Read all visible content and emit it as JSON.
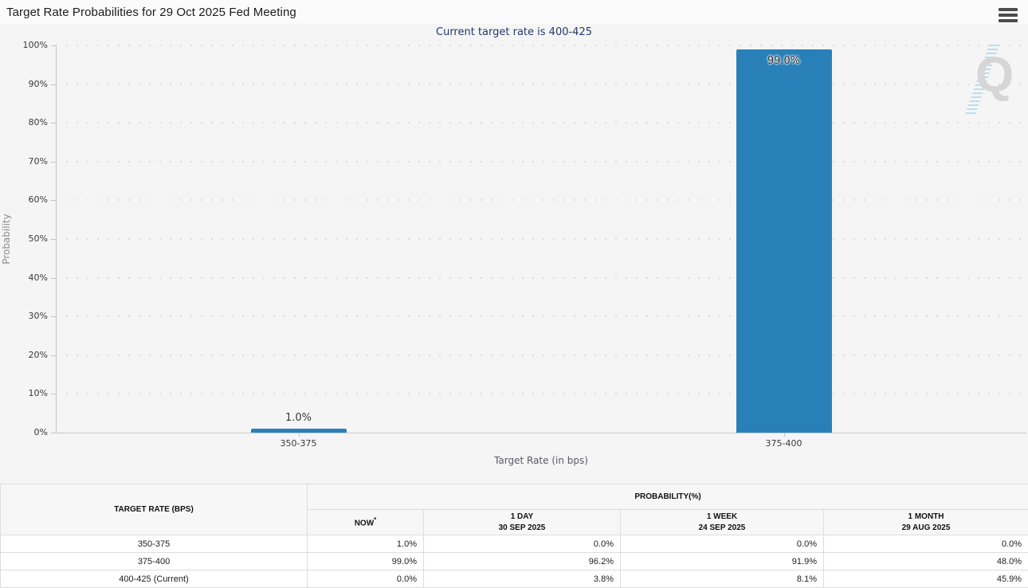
{
  "page": {
    "title": "Target Rate Probabilities for 29 Oct 2025 Fed Meeting"
  },
  "chart": {
    "subtitle": "Current target rate is 400-425",
    "ylabel": "Probability",
    "xlabel": "Target Rate (in bps)",
    "watermark_letter": "Q",
    "yticks": [
      "100%",
      "90%",
      "80%",
      "70%",
      "60%",
      "50%",
      "40%",
      "30%",
      "20%",
      "10%",
      "0%"
    ]
  },
  "chart_data": {
    "type": "bar",
    "title": "Target Rate Probabilities for 29 Oct 2025 Fed Meeting",
    "subtitle": "Current target rate is 400-425",
    "categories": [
      "350-375",
      "375-400"
    ],
    "values": [
      1.0,
      99.0
    ],
    "value_labels": [
      "1.0%",
      "99.0%"
    ],
    "xlabel": "Target Rate (in bps)",
    "ylabel": "Probability",
    "ylim": [
      0,
      100
    ],
    "ytick_step": 10,
    "ytick_format": "percent",
    "grid": true,
    "legend": false,
    "bar_color": "#2980b9"
  },
  "table": {
    "rate_header": "TARGET RATE (BPS)",
    "prob_header": "PROBABILITY(%)",
    "now_label": "NOW",
    "now_sup": "*",
    "history_cols": [
      {
        "line1": "1 DAY",
        "line2": "30 SEP 2025"
      },
      {
        "line1": "1 WEEK",
        "line2": "24 SEP 2025"
      },
      {
        "line1": "1 MONTH",
        "line2": "29 AUG 2025"
      }
    ],
    "rows": [
      {
        "rate": "350-375",
        "now": "1.0%",
        "day": "0.0%",
        "week": "0.0%",
        "month": "0.0%"
      },
      {
        "rate": "375-400",
        "now": "99.0%",
        "day": "96.2%",
        "week": "91.9%",
        "month": "48.0%"
      },
      {
        "rate": "400-425 (Current)",
        "now": "0.0%",
        "day": "3.8%",
        "week": "8.1%",
        "month": "45.9%"
      }
    ]
  },
  "colors": {
    "bar": "#2980b9",
    "now_highlight": "#f7f7dc",
    "subtitle_text": "#26386b"
  }
}
